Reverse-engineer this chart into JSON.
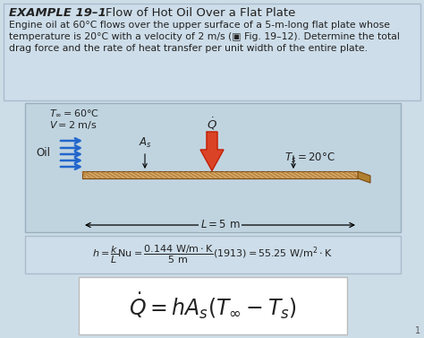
{
  "fig_w": 4.74,
  "fig_h": 3.77,
  "dpi": 100,
  "bg_color": "#ccdde8",
  "title_box_bg": "#cddde9",
  "title_box_edge": "#aabbcc",
  "diag_box_bg": "#c0d4e0",
  "diag_box_edge": "#9aafbe",
  "formula_box_bg": "#cddde9",
  "formula_box_edge": "#aabbcc",
  "big_formula_bg": "#ffffff",
  "big_formula_edge": "#bbbbbb",
  "plate_fill": "#d4a96a",
  "plate_edge": "#7a4a10",
  "plate_stripe": "#b07830",
  "plate_right_face": "#b08030",
  "arrow_blue": "#2266cc",
  "arrow_red": "#cc2200",
  "text_color": "#222222",
  "title_example": "EXAMPLE 19–1",
  "title_rest": "  Flow of Hot Oil Over a Flat Plate",
  "desc_line1": "Engine oil at 60°C flows over the upper surface of a 5-m-long flat plate whose",
  "desc_line2": "temperature is 20°C with a velocity of 2 m/s (▣ Fig. 19–12). Determine the total",
  "desc_line3": "drag force and the rate of heat transfer per unit width of the entire plate."
}
